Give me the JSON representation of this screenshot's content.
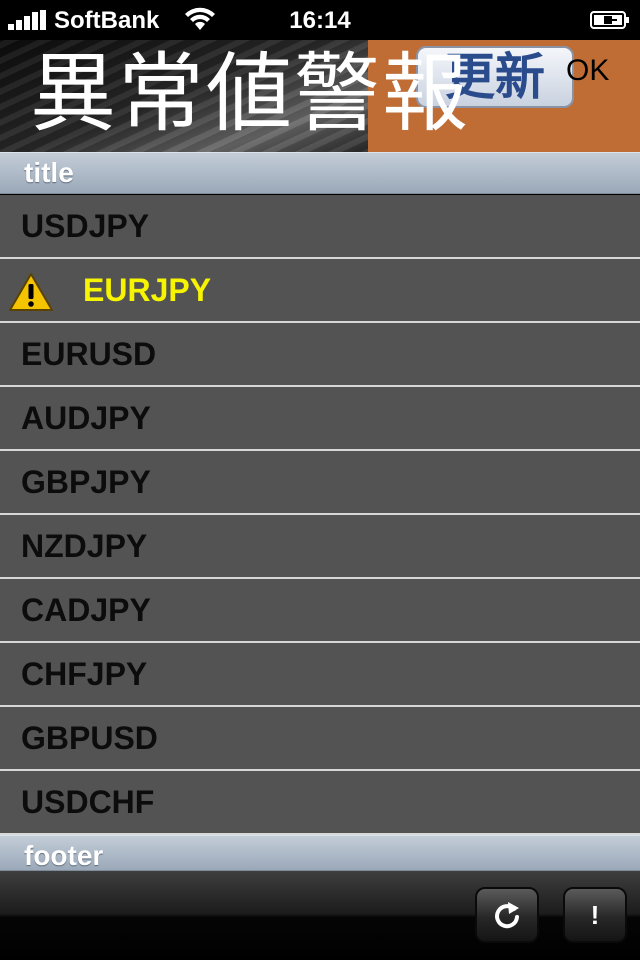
{
  "status_bar": {
    "carrier": "SoftBank",
    "time": "16:14"
  },
  "header": {
    "title": "異常値警報",
    "update_label": "更新",
    "ok_label": "OK",
    "accent_color": "#c06d35"
  },
  "table": {
    "header": "title",
    "footer": "footer",
    "rows": [
      {
        "label": "USDJPY",
        "alert": false
      },
      {
        "label": "EURJPY",
        "alert": true
      },
      {
        "label": "EURUSD",
        "alert": false
      },
      {
        "label": "AUDJPY",
        "alert": false
      },
      {
        "label": "GBPJPY",
        "alert": false
      },
      {
        "label": "NZDJPY",
        "alert": false
      },
      {
        "label": "CADJPY",
        "alert": false
      },
      {
        "label": "CHFJPY",
        "alert": false
      },
      {
        "label": "GBPUSD",
        "alert": false
      },
      {
        "label": "USDCHF",
        "alert": false
      }
    ],
    "alert_color": "#f6f400"
  },
  "toolbar": {
    "refresh_icon": "refresh-icon",
    "info_label": "!"
  }
}
